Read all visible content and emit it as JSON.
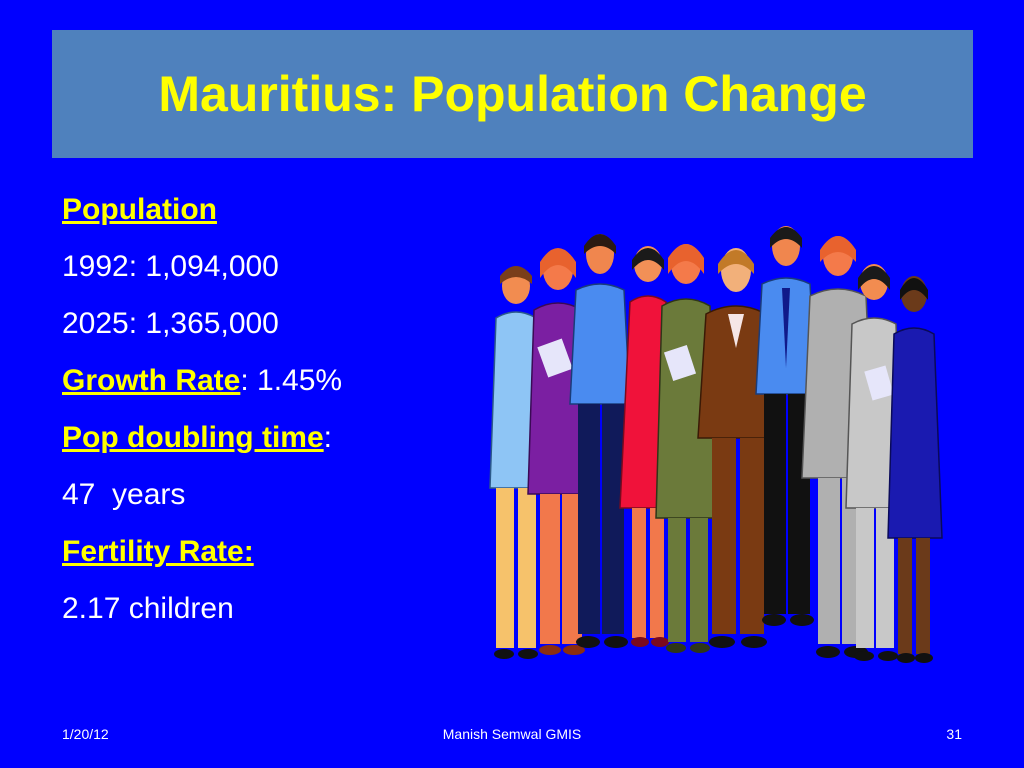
{
  "slide": {
    "title": "Mauritius: Population Change",
    "lines": [
      {
        "label": "Population",
        "rest": ""
      },
      {
        "label": "",
        "rest": "1992: 1,094,000"
      },
      {
        "label": "",
        "rest": "2025: 1,365,000"
      },
      {
        "label": "Growth Rate",
        "rest": ": 1.45%"
      },
      {
        "label": "Pop doubling time",
        "rest": ":"
      },
      {
        "label": "",
        "rest": "47  years"
      },
      {
        "label": "Fertility Rate:",
        "rest": ""
      },
      {
        "label": "",
        "rest": "2.17 children"
      }
    ]
  },
  "footer": {
    "date": "1/20/12",
    "author": "Manish Semwal GMIS",
    "page": "31"
  },
  "colors": {
    "background": "#0000FF",
    "title_band": "#4F81BD",
    "title_text": "#FFFF00"
  },
  "illustration": {
    "icon": "group-of-people-clipart"
  }
}
